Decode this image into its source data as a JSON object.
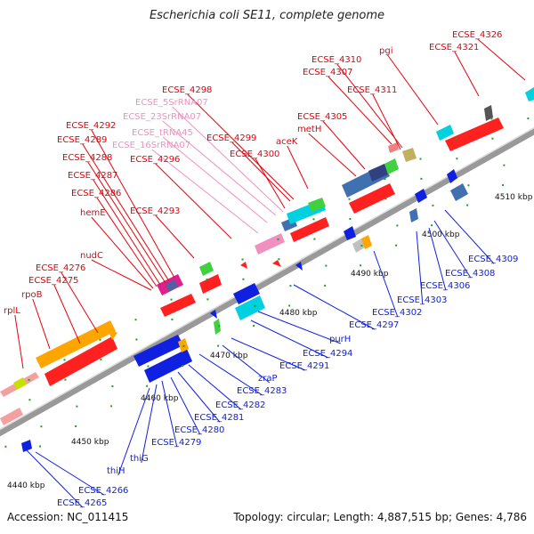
{
  "title": "Escherichia coli SE11, complete genome",
  "footer": {
    "accession": "Accession: NC_011415",
    "summary": "Topology: circular; Length: 4,887,515 bp; Genes: 4,786"
  },
  "colors": {
    "forward": "#e8000b",
    "reverse": "#1020e0",
    "rna": "#f090c0",
    "backbone": "#999999"
  },
  "scale_labels": [
    "4440 kbp",
    "4450 kbp",
    "4460 kbp",
    "4470 kbp",
    "4480 kbp",
    "4490 kbp",
    "4500 kbp",
    "4510 kbp"
  ],
  "top_labels": [
    {
      "text": "ECSE_4326",
      "color": "#e8000b"
    },
    {
      "text": "ECSE_4321",
      "color": "#e8000b"
    },
    {
      "text": "pgi",
      "color": "#e8000b"
    },
    {
      "text": "ECSE_4310",
      "color": "#e8000b"
    },
    {
      "text": "ECSE_4307",
      "color": "#e8000b"
    },
    {
      "text": "ECSE_4311",
      "color": "#e8000b"
    },
    {
      "text": "ECSE_4298",
      "color": "#e8000b"
    },
    {
      "text": "ECSE_5SrRNA07",
      "color": "#f090c0"
    },
    {
      "text": "ECSE_23SrRNA07",
      "color": "#f090c0"
    },
    {
      "text": "ECSE_tRNA45",
      "color": "#f090c0"
    },
    {
      "text": "ECSE_16SrRNA07",
      "color": "#f090c0"
    },
    {
      "text": "ECSE_4305",
      "color": "#e8000b"
    },
    {
      "text": "metH",
      "color": "#e8000b"
    },
    {
      "text": "ECSE_4299",
      "color": "#e8000b"
    },
    {
      "text": "aceK",
      "color": "#e8000b"
    },
    {
      "text": "ECSE_4300",
      "color": "#e8000b"
    },
    {
      "text": "ECSE_4292",
      "color": "#e8000b"
    },
    {
      "text": "ECSE_4289",
      "color": "#e8000b"
    },
    {
      "text": "ECSE_4296",
      "color": "#e8000b"
    },
    {
      "text": "ECSE_4288",
      "color": "#e8000b"
    },
    {
      "text": "ECSE_4287",
      "color": "#e8000b"
    },
    {
      "text": "ECSE_4286",
      "color": "#e8000b"
    },
    {
      "text": "ECSE_4293",
      "color": "#e8000b"
    },
    {
      "text": "hemE",
      "color": "#e8000b"
    },
    {
      "text": "nudC",
      "color": "#e8000b"
    },
    {
      "text": "ECSE_4276",
      "color": "#e8000b"
    },
    {
      "text": "ECSE_4275",
      "color": "#e8000b"
    },
    {
      "text": "rpoB",
      "color": "#e8000b"
    },
    {
      "text": "rplL",
      "color": "#e8000b"
    }
  ],
  "bottom_labels": [
    {
      "text": "ECSE_4309",
      "color": "#1020e0"
    },
    {
      "text": "ECSE_4308",
      "color": "#1020e0"
    },
    {
      "text": "ECSE_4306",
      "color": "#1020e0"
    },
    {
      "text": "ECSE_4303",
      "color": "#1020e0"
    },
    {
      "text": "ECSE_4302",
      "color": "#1020e0"
    },
    {
      "text": "ECSE_4297",
      "color": "#1020e0"
    },
    {
      "text": "purH",
      "color": "#1020e0"
    },
    {
      "text": "ECSE_4294",
      "color": "#1020e0"
    },
    {
      "text": "ECSE_4291",
      "color": "#1020e0"
    },
    {
      "text": "zraP",
      "color": "#1020e0"
    },
    {
      "text": "ECSE_4283",
      "color": "#1020e0"
    },
    {
      "text": "ECSE_4282",
      "color": "#1020e0"
    },
    {
      "text": "ECSE_4281",
      "color": "#1020e0"
    },
    {
      "text": "ECSE_4280",
      "color": "#1020e0"
    },
    {
      "text": "ECSE_4279",
      "color": "#1020e0"
    },
    {
      "text": "thiG",
      "color": "#1020e0"
    },
    {
      "text": "thiH",
      "color": "#1020e0"
    },
    {
      "text": "ECSE_4266",
      "color": "#1020e0"
    },
    {
      "text": "ECSE_4265",
      "color": "#1020e0"
    }
  ]
}
